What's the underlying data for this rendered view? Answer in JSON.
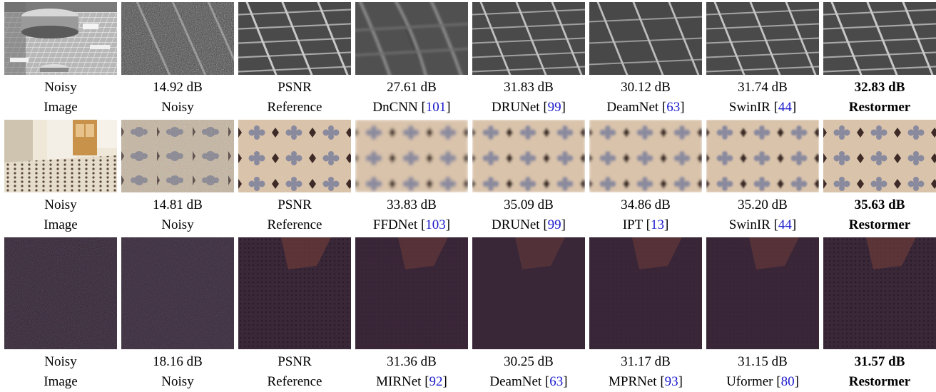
{
  "rows": [
    {
      "id": "urban",
      "cells": [
        {
          "line1": "Noisy",
          "line2": "Image",
          "bold": false
        },
        {
          "line1": "14.92 dB",
          "line2": "Noisy",
          "bold": false
        },
        {
          "line1": "PSNR",
          "line2": "Reference",
          "bold": false
        },
        {
          "line1": "27.61 dB",
          "line2": "DnCNN",
          "cite": "101",
          "bold": false
        },
        {
          "line1": "31.83 dB",
          "line2": "DRUNet",
          "cite": "99",
          "bold": false
        },
        {
          "line1": "30.12 dB",
          "line2": "DeamNet",
          "cite": "63",
          "bold": false
        },
        {
          "line1": "31.74 dB",
          "line2": "SwinIR",
          "cite": "44",
          "bold": false
        },
        {
          "line1": "32.83 dB",
          "line2": "Restormer",
          "bold": true
        }
      ]
    },
    {
      "id": "indoor",
      "cells": [
        {
          "line1": "Noisy",
          "line2": "Image",
          "bold": false
        },
        {
          "line1": "14.81 dB",
          "line2": "Noisy",
          "bold": false
        },
        {
          "line1": "PSNR",
          "line2": "Reference",
          "bold": false
        },
        {
          "line1": "33.83 dB",
          "line2": "FFDNet",
          "cite": "103",
          "bold": false
        },
        {
          "line1": "35.09 dB",
          "line2": "DRUNet",
          "cite": "99",
          "bold": false
        },
        {
          "line1": "34.86 dB",
          "line2": "IPT",
          "cite": "13",
          "bold": false
        },
        {
          "line1": "35.20 dB",
          "line2": "SwinIR",
          "cite": "44",
          "bold": false
        },
        {
          "line1": "35.63 dB",
          "line2": "Restormer",
          "bold": true
        }
      ]
    },
    {
      "id": "dark",
      "cells": [
        {
          "line1": "Noisy",
          "line2": "Image",
          "bold": false
        },
        {
          "line1": "18.16 dB",
          "line2": "Noisy",
          "bold": false
        },
        {
          "line1": "PSNR",
          "line2": "Reference",
          "bold": false
        },
        {
          "line1": "31.36 dB",
          "line2": "MIRNet",
          "cite": "92",
          "bold": false
        },
        {
          "line1": "30.25 dB",
          "line2": "DeamNet",
          "cite": "63",
          "bold": false
        },
        {
          "line1": "31.17 dB",
          "line2": "MPRNet",
          "cite": "93",
          "bold": false
        },
        {
          "line1": "31.15 dB",
          "line2": "Uformer",
          "cite": "80",
          "bold": false
        },
        {
          "line1": "31.57 dB",
          "line2": "Restormer",
          "bold": true
        }
      ]
    }
  ]
}
